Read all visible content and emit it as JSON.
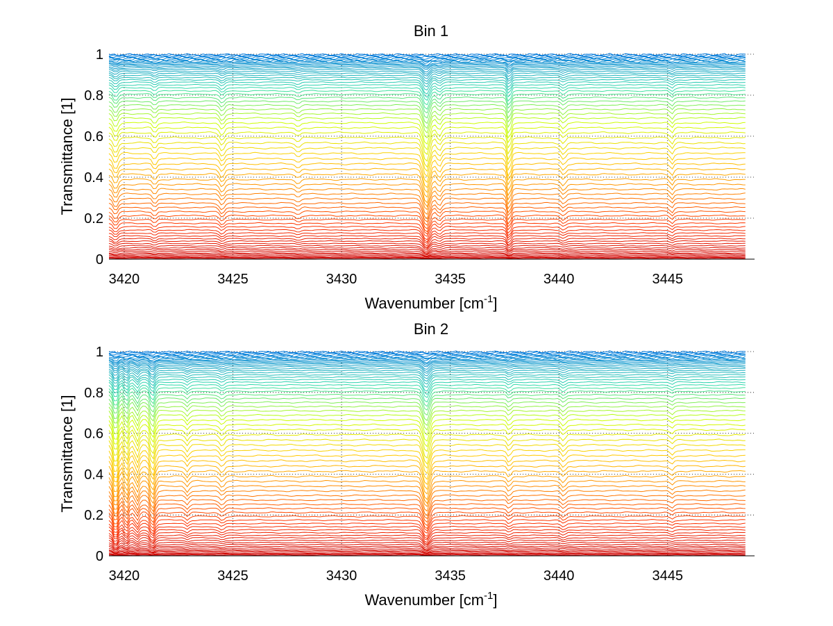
{
  "chart_data": [
    {
      "type": "line",
      "title": "Bin 1",
      "xlabel_base": "Wavenumber [cm",
      "xlabel_sup": "-1",
      "xlabel_close": "]",
      "ylabel": "Transmittance [1]",
      "xlim": [
        3419.3,
        3449.0
      ],
      "ylim": [
        0,
        1
      ],
      "xticks": [
        "3420",
        "3425",
        "3430",
        "3435",
        "3440",
        "3445"
      ],
      "yticks": [
        "0",
        "0.2",
        "0.4",
        "0.6",
        "0.8",
        "1"
      ],
      "grid": true,
      "grid_style": "dotted",
      "legend": "none",
      "colormap": [
        "#cc0000",
        "#ff3300",
        "#ff8800",
        "#ffcc00",
        "#ccff00",
        "#33ddaa",
        "#0077dd"
      ],
      "x_range": [
        3419.3,
        3448.6
      ],
      "series_count": 70,
      "series_baselines": [
        0.0,
        0.004,
        0.008,
        0.012,
        0.018,
        0.024,
        0.03,
        0.038,
        0.046,
        0.055,
        0.065,
        0.076,
        0.088,
        0.1,
        0.113,
        0.127,
        0.142,
        0.158,
        0.175,
        0.193,
        0.212,
        0.232,
        0.252,
        0.273,
        0.295,
        0.318,
        0.341,
        0.365,
        0.389,
        0.414,
        0.439,
        0.465,
        0.49,
        0.516,
        0.542,
        0.567,
        0.592,
        0.617,
        0.641,
        0.665,
        0.688,
        0.71,
        0.731,
        0.751,
        0.77,
        0.788,
        0.805,
        0.821,
        0.836,
        0.85,
        0.863,
        0.875,
        0.886,
        0.897,
        0.907,
        0.916,
        0.925,
        0.933,
        0.94,
        0.947,
        0.953,
        0.959,
        0.964,
        0.969,
        0.974,
        0.979,
        0.984,
        0.989,
        0.994,
        0.998
      ],
      "absorption_features": [
        {
          "x": 3419.6,
          "depth": 0.05,
          "width": 0.15
        },
        {
          "x": 3421.4,
          "depth": 0.03,
          "width": 0.12
        },
        {
          "x": 3424.5,
          "depth": 0.04,
          "width": 0.15
        },
        {
          "x": 3428.0,
          "depth": 0.02,
          "width": 0.15
        },
        {
          "x": 3433.9,
          "depth": 0.12,
          "width": 0.2
        },
        {
          "x": 3434.5,
          "depth": 0.04,
          "width": 0.15
        },
        {
          "x": 3437.7,
          "depth": 0.09,
          "width": 0.12
        },
        {
          "x": 3440.2,
          "depth": 0.03,
          "width": 0.15
        },
        {
          "x": 3445.2,
          "depth": 0.03,
          "width": 0.12
        }
      ]
    },
    {
      "type": "line",
      "title": "Bin 2",
      "xlabel_base": "Wavenumber [cm",
      "xlabel_sup": "-1",
      "xlabel_close": "]",
      "ylabel": "Transmittance [1]",
      "xlim": [
        3419.3,
        3449.0
      ],
      "ylim": [
        0,
        1
      ],
      "xticks": [
        "3420",
        "3425",
        "3430",
        "3435",
        "3440",
        "3445"
      ],
      "yticks": [
        "0",
        "0.2",
        "0.4",
        "0.6",
        "0.8",
        "1"
      ],
      "grid": true,
      "grid_style": "dotted",
      "legend": "none",
      "colormap": [
        "#cc0000",
        "#ff3300",
        "#ff8800",
        "#ffcc00",
        "#ccff00",
        "#33ddaa",
        "#0077dd"
      ],
      "x_range": [
        3419.3,
        3448.6
      ],
      "series_count": 70,
      "series_baselines": [
        0.0,
        0.004,
        0.008,
        0.012,
        0.018,
        0.024,
        0.03,
        0.038,
        0.046,
        0.055,
        0.065,
        0.076,
        0.088,
        0.1,
        0.113,
        0.127,
        0.142,
        0.158,
        0.175,
        0.193,
        0.212,
        0.232,
        0.252,
        0.273,
        0.295,
        0.318,
        0.341,
        0.365,
        0.389,
        0.414,
        0.439,
        0.465,
        0.49,
        0.516,
        0.542,
        0.567,
        0.592,
        0.617,
        0.641,
        0.665,
        0.688,
        0.71,
        0.731,
        0.751,
        0.77,
        0.788,
        0.805,
        0.821,
        0.836,
        0.85,
        0.863,
        0.875,
        0.886,
        0.897,
        0.907,
        0.916,
        0.925,
        0.933,
        0.94,
        0.947,
        0.953,
        0.959,
        0.964,
        0.969,
        0.974,
        0.979,
        0.984,
        0.989,
        0.994,
        0.998
      ],
      "absorption_features": [
        {
          "x": 3419.6,
          "depth": 0.12,
          "width": 0.15
        },
        {
          "x": 3420.1,
          "depth": 0.08,
          "width": 0.12
        },
        {
          "x": 3420.6,
          "depth": 0.06,
          "width": 0.12
        },
        {
          "x": 3421.3,
          "depth": 0.1,
          "width": 0.15
        },
        {
          "x": 3422.9,
          "depth": 0.03,
          "width": 0.12
        },
        {
          "x": 3424.5,
          "depth": 0.03,
          "width": 0.15
        },
        {
          "x": 3433.9,
          "depth": 0.12,
          "width": 0.2
        },
        {
          "x": 3437.7,
          "depth": 0.03,
          "width": 0.12
        },
        {
          "x": 3440.2,
          "depth": 0.03,
          "width": 0.15
        },
        {
          "x": 3445.2,
          "depth": 0.02,
          "width": 0.12
        }
      ]
    }
  ]
}
